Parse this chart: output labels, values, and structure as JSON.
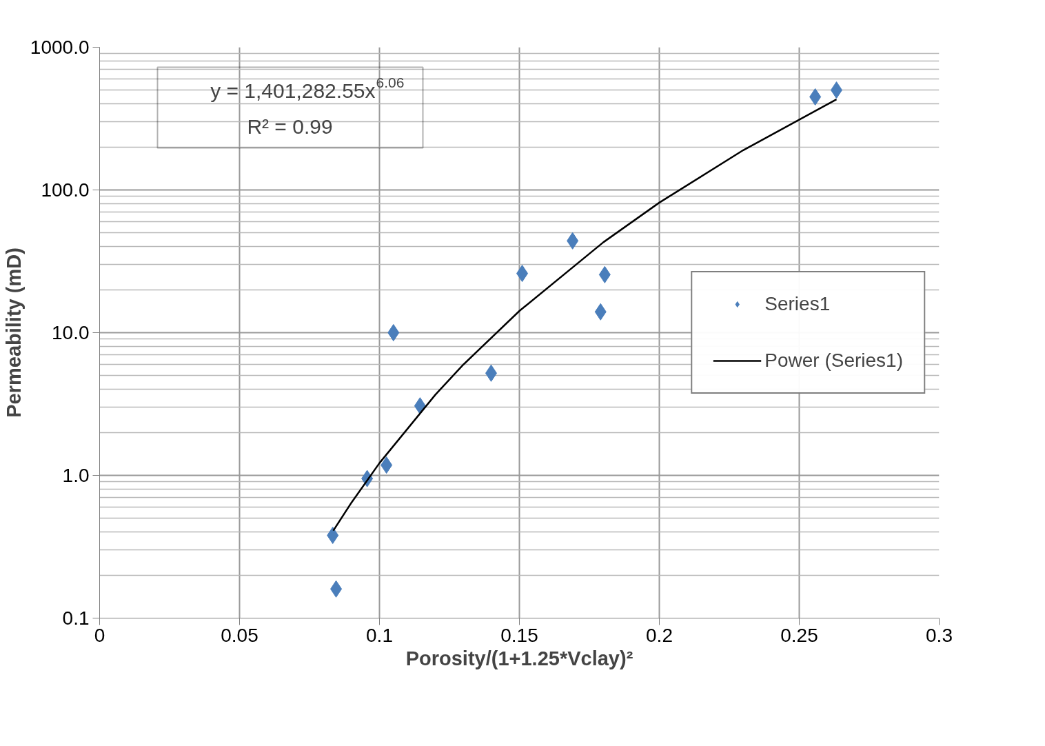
{
  "chart_data": {
    "type": "scatter",
    "xlabel": "Porosity/(1+1.25*Vclay)²",
    "ylabel": "Permeability (mD)",
    "log": "y",
    "grid": true,
    "legend": "right",
    "xlim": [
      0,
      0.3
    ],
    "ylim": [
      0.1,
      1000
    ],
    "xticks": [
      0,
      0.05,
      0.1,
      0.15,
      0.2,
      0.25,
      0.3
    ],
    "yticks": [
      0.1,
      {
        "value": 1,
        "label": "1.0"
      },
      {
        "value": 10,
        "label": "10.0"
      },
      {
        "value": 100,
        "label": "100.0"
      },
      {
        "value": 1000,
        "label": "1000.0"
      }
    ],
    "annotations": [
      "y = 1,401,282.55x$^{6.06}$",
      "R² = 0.99"
    ],
    "series": [
      {
        "name": "Series1",
        "marker": "diamond",
        "color": "#4a7ebb",
        "x": [
          0.0833,
          0.0845,
          0.0956,
          0.1025,
          0.105,
          0.1145,
          0.1399,
          0.151,
          0.169,
          0.179,
          0.1805,
          0.2557,
          0.2633
        ],
        "values": [
          0.38,
          0.16,
          0.95,
          1.18,
          10,
          3.07,
          5.2,
          26,
          44,
          14,
          25.5,
          449,
          501
        ]
      },
      {
        "name": "Power (Series1)",
        "type": "line",
        "marker": "none",
        "line_style": "solid",
        "color": "#000000",
        "x": [
          0.0835,
          0.09,
          0.1,
          0.12,
          0.13,
          0.15,
          0.18,
          0.2,
          0.23,
          0.2633
        ],
        "values": [
          0.41,
          0.645,
          1.22,
          3.68,
          5.98,
          14.2,
          43,
          81.5,
          190,
          431
        ]
      }
    ]
  }
}
